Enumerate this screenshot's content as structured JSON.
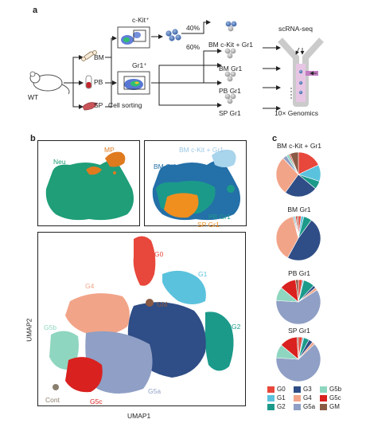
{
  "panel_a": {
    "letter": "a",
    "mouse_label": "WT",
    "tissues": [
      "BM",
      "PB",
      "SP"
    ],
    "facs_ckit_label": "c-Kit⁺",
    "facs_gr1_label": "Gr1⁺",
    "sorting_label": "Cell sorting",
    "pct_40": "40%",
    "pct_60": "60%",
    "samples": [
      "BM c-Kit + Gr1",
      "BM Gr1",
      "PB Gr1",
      "SP Gr1"
    ],
    "scrna_label": "scRNA-seq",
    "genomics_label": "10× Genomics"
  },
  "panel_b": {
    "letter": "b",
    "top_left_labels": [
      "Neu",
      "MP"
    ],
    "top_right_labels": [
      "BM c-Kit + Gr1",
      "BM Gr1",
      "PB Gr1",
      "SP Gr1"
    ],
    "clusters": [
      "G0",
      "G1",
      "GM",
      "G2",
      "G3",
      "G4",
      "G5a",
      "G5b",
      "G5c",
      "Cont"
    ],
    "xlabel": "UMAP1",
    "ylabel": "UMAP2"
  },
  "panel_c": {
    "letter": "c",
    "colors": {
      "G0": "#e8473b",
      "G1": "#5bc2dd",
      "G2": "#1b9a8a",
      "G3": "#2f4d86",
      "G4": "#f2a488",
      "G5a": "#8f9fc5",
      "G5b": "#8fd6c0",
      "G5c": "#d9211f",
      "GM": "#8a5a44"
    },
    "legend": [
      "G0",
      "G3",
      "G5b",
      "G1",
      "G4",
      "G5c",
      "G2",
      "G5a",
      "GM"
    ]
  },
  "chart_data": [
    {
      "type": "pie",
      "title": "BM c-Kit + Gr1",
      "labels": [
        "G0",
        "G1",
        "G2",
        "G3",
        "G4",
        "G5a",
        "G5b",
        "G5c",
        "GM"
      ],
      "values": [
        18,
        12,
        6,
        24,
        28,
        3,
        2,
        1,
        6
      ]
    },
    {
      "type": "pie",
      "title": "BM Gr1",
      "labels": [
        "G0",
        "G1",
        "G2",
        "G3",
        "G4",
        "G5a",
        "G5b",
        "G5c",
        "GM"
      ],
      "values": [
        2,
        2,
        6,
        48,
        38,
        1,
        1,
        1,
        1
      ]
    },
    {
      "type": "pie",
      "title": "PB Gr1",
      "labels": [
        "G0",
        "G1",
        "G2",
        "G3",
        "G4",
        "G5a",
        "G5b",
        "G5c",
        "GM"
      ],
      "values": [
        3,
        1,
        8,
        2,
        2,
        60,
        10,
        12,
        2
      ]
    },
    {
      "type": "pie",
      "title": "SP Gr1",
      "labels": [
        "G0",
        "G1",
        "G2",
        "G3",
        "G4",
        "G5a",
        "G5b",
        "G5c",
        "GM"
      ],
      "values": [
        3,
        1,
        4,
        3,
        2,
        63,
        10,
        13,
        1
      ]
    }
  ]
}
